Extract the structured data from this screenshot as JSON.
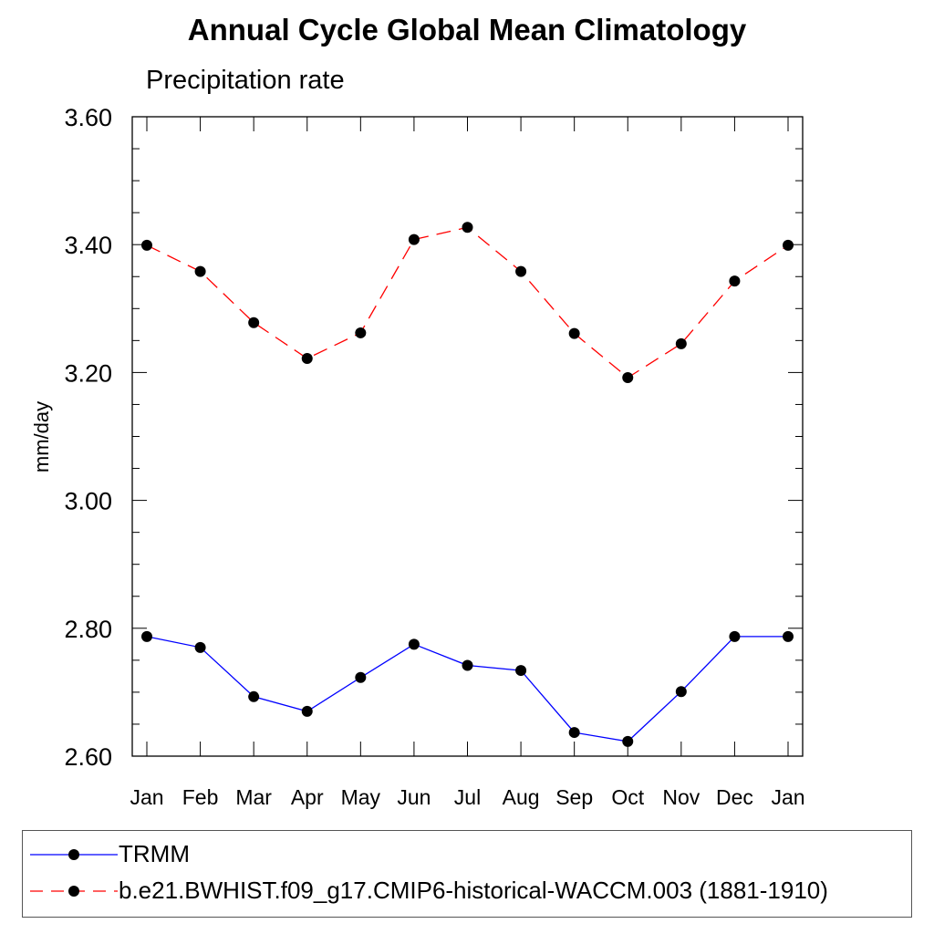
{
  "chart_data": {
    "type": "line",
    "title": "Annual Cycle Global Mean Climatology",
    "subtitle": "Precipitation rate",
    "xlabel": "",
    "ylabel": "mm/day",
    "categories": [
      "Jan",
      "Feb",
      "Mar",
      "Apr",
      "May",
      "Jun",
      "Jul",
      "Aug",
      "Sep",
      "Oct",
      "Nov",
      "Dec",
      "Jan"
    ],
    "ylim": [
      2.6,
      3.6
    ],
    "yticks": [
      "2.60",
      "2.80",
      "3.00",
      "3.20",
      "3.40",
      "3.60"
    ],
    "grid": false,
    "legend_position": "bottom",
    "series": [
      {
        "name": "TRMM",
        "color": "#0000ff",
        "dash": "solid",
        "marker": "filled-circle",
        "values": [
          2.787,
          2.77,
          2.693,
          2.67,
          2.723,
          2.775,
          2.742,
          2.734,
          2.637,
          2.623,
          2.701,
          2.787,
          2.787
        ]
      },
      {
        "name": "b.e21.BWHIST.f09_g17.CMIP6-historical-WACCM.003 (1881-1910)",
        "color": "#ff0000",
        "dash": "dashed",
        "marker": "filled-circle",
        "values": [
          3.399,
          3.358,
          3.278,
          3.222,
          3.262,
          3.408,
          3.427,
          3.358,
          3.261,
          3.192,
          3.245,
          3.343,
          3.399
        ]
      }
    ]
  }
}
